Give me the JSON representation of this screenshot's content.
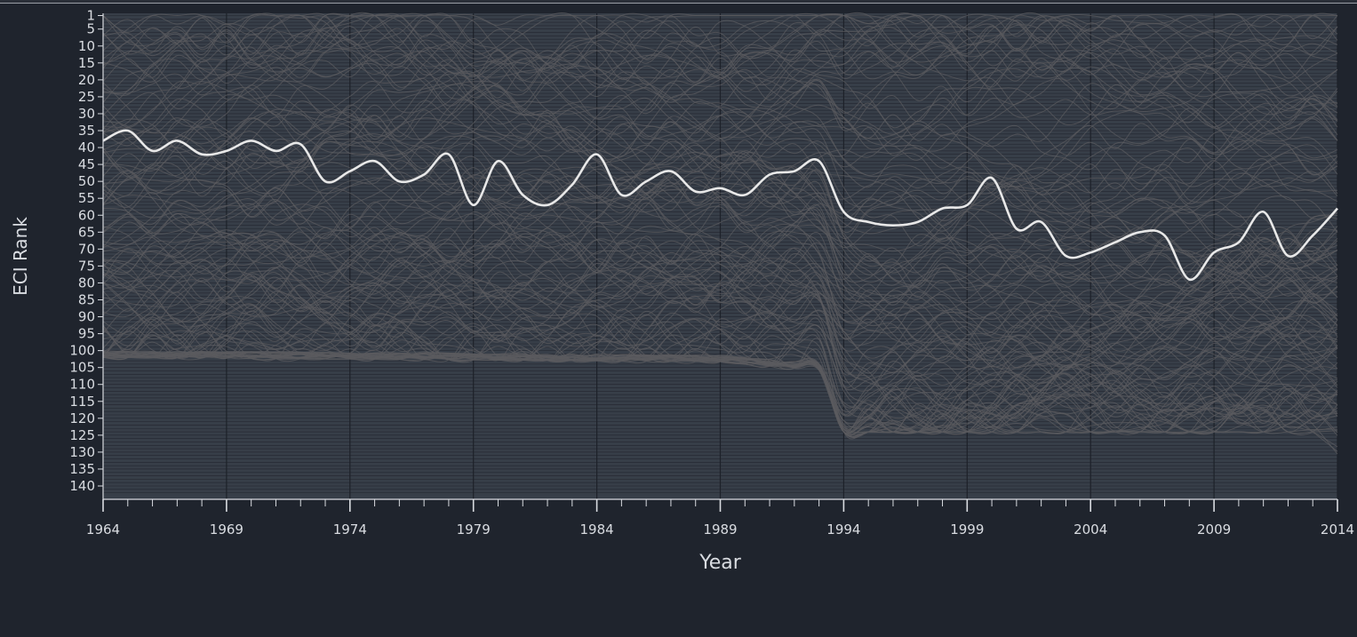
{
  "chart_data": {
    "type": "line",
    "title": "",
    "xlabel": "Year",
    "ylabel": "ECI Rank",
    "xlim": [
      1964,
      2014
    ],
    "ylim": [
      1,
      142
    ],
    "y_inverted": true,
    "grid": true,
    "x_ticks": [
      1964,
      1969,
      1974,
      1979,
      1984,
      1989,
      1994,
      1999,
      2004,
      2009,
      2014
    ],
    "x_tick_labels": [
      "1964",
      "1969",
      "1974",
      "1979",
      "1984",
      "1989",
      "1994",
      "1999",
      "2004",
      "2009",
      "2014"
    ],
    "y_ticks": [
      1,
      5,
      10,
      15,
      20,
      25,
      30,
      35,
      40,
      45,
      50,
      55,
      60,
      65,
      70,
      75,
      80,
      85,
      90,
      95,
      100,
      105,
      110,
      115,
      120,
      125,
      130,
      135,
      140
    ],
    "y_tick_labels": [
      "1",
      "5",
      "10",
      "15",
      "20",
      "25",
      "30",
      "35",
      "40",
      "45",
      "50",
      "55",
      "60",
      "65",
      "70",
      "75",
      "80",
      "85",
      "90",
      "95",
      "100",
      "105",
      "110",
      "115",
      "120",
      "125",
      "130",
      "135",
      "140"
    ],
    "background_series_count": 124,
    "colors": {
      "page_background": "#1f242d",
      "plot_background": "#373e48",
      "background_lines": "#5b5b5f",
      "highlight_line": "#e8e8e8",
      "grid_lines": "#1d2129",
      "text": "#d9dce1"
    },
    "highlight_series": {
      "x": [
        1964,
        1965,
        1966,
        1967,
        1968,
        1969,
        1970,
        1971,
        1972,
        1973,
        1974,
        1975,
        1976,
        1977,
        1978,
        1979,
        1980,
        1981,
        1982,
        1983,
        1984,
        1985,
        1986,
        1987,
        1988,
        1989,
        1990,
        1991,
        1992,
        1993,
        1994,
        1995,
        1996,
        1997,
        1998,
        1999,
        2000,
        2001,
        2002,
        2003,
        2004,
        2005,
        2006,
        2007,
        2008,
        2009,
        2010,
        2011,
        2012,
        2013,
        2014
      ],
      "y": [
        38,
        35,
        41,
        38,
        42,
        41,
        38,
        41,
        39,
        50,
        47,
        44,
        50,
        48,
        42,
        57,
        44,
        54,
        57,
        51,
        42,
        54,
        50,
        47,
        53,
        52,
        54,
        48,
        47,
        44,
        59,
        62,
        63,
        62,
        58,
        57,
        49,
        64,
        62,
        72,
        71,
        68,
        65,
        66,
        79,
        71,
        68,
        59,
        72,
        66,
        58
      ]
    }
  }
}
